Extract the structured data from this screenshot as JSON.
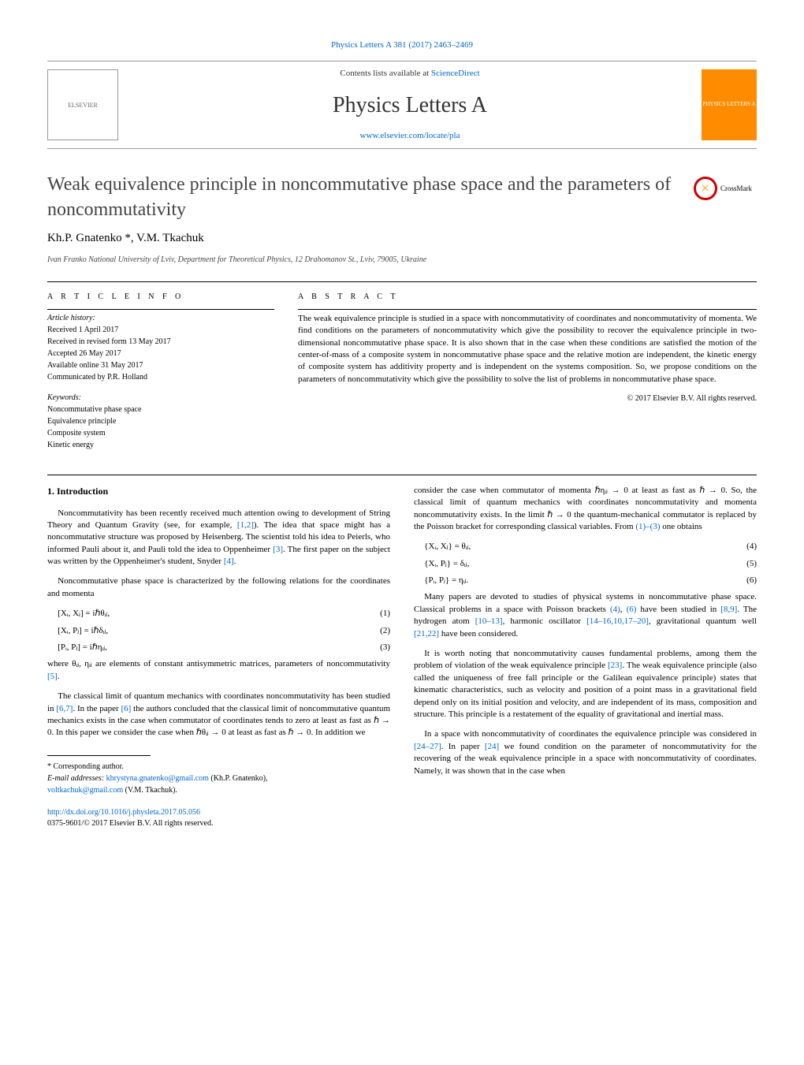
{
  "header": {
    "citation_link": "Physics Letters A 381 (2017) 2463–2469",
    "contents_line_pre": "Contents lists available at ",
    "contents_line_link": "ScienceDirect",
    "journal_name": "Physics Letters A",
    "journal_url": "www.elsevier.com/locate/pla",
    "elsevier_label": "ELSEVIER",
    "cover_label": "PHYSICS LETTERS A"
  },
  "article": {
    "title": "Weak equivalence principle in noncommutative phase space and the parameters of noncommutativity",
    "authors": "Kh.P. Gnatenko *, V.M. Tkachuk",
    "affiliation": "Ivan Franko National University of Lviv, Department for Theoretical Physics, 12 Drahomanov St., Lviv, 79005, Ukraine",
    "crossmark_label": "CrossMark"
  },
  "info": {
    "article_info_label": "A R T I C L E   I N F O",
    "history_label": "Article history:",
    "received": "Received 1 April 2017",
    "revised": "Received in revised form 13 May 2017",
    "accepted": "Accepted 26 May 2017",
    "online": "Available online 31 May 2017",
    "communicated": "Communicated by P.R. Holland",
    "keywords_label": "Keywords:",
    "keywords": [
      "Noncommutative phase space",
      "Equivalence principle",
      "Composite system",
      "Kinetic energy"
    ]
  },
  "abstract": {
    "label": "A B S T R A C T",
    "text": "The weak equivalence principle is studied in a space with noncommutativity of coordinates and noncommutativity of momenta. We find conditions on the parameters of noncommutativity which give the possibility to recover the equivalence principle in two-dimensional noncommutative phase space. It is also shown that in the case when these conditions are satisfied the motion of the center-of-mass of a composite system in noncommutative phase space and the relative motion are independent, the kinetic energy of composite system has additivity property and is independent on the systems composition. So, we propose conditions on the parameters of noncommutativity which give the possibility to solve the list of problems in noncommutative phase space.",
    "copyright": "© 2017 Elsevier B.V. All rights reserved."
  },
  "body": {
    "section1_heading": "1. Introduction",
    "p1_pre": "Noncommutativity has been recently received much attention owing to development of String Theory and Quantum Gravity (see, for example, ",
    "p1_cite1": "[1,2]",
    "p1_mid": "). The idea that space might has a noncommutative structure was proposed by Heisenberg. The scientist told his idea to Peierls, who informed Pauli about it, and Pauli told the idea to Oppenheimer ",
    "p1_cite2": "[3]",
    "p1_mid2": ". The first paper on the subject was written by the Oppenheimer's student, Snyder ",
    "p1_cite3": "[4]",
    "p1_end": ".",
    "p2": "Noncommutative phase space is characterized by the following relations for the coordinates and momenta",
    "eq1": "[Xᵢ, Xⱼ] = iℏθᵢⱼ,",
    "eq1n": "(1)",
    "eq2": "[Xᵢ, Pⱼ] = iℏδᵢⱼ,",
    "eq2n": "(2)",
    "eq3": "[Pᵢ, Pⱼ] = iℏηᵢⱼ,",
    "eq3n": "(3)",
    "p3_pre": "where θᵢⱼ, ηᵢⱼ are elements of constant antisymmetric matrices, parameters of noncommutativity ",
    "p3_cite": "[5]",
    "p3_end": ".",
    "p4_pre": "The classical limit of quantum mechanics with coordinates noncommutativity has been studied in ",
    "p4_cite1": "[6,7]",
    "p4_mid1": ". In the paper ",
    "p4_cite2": "[6]",
    "p4_mid2": " the authors concluded that the classical limit of noncommutative quantum mechanics exists in the case when commutator of coordinates tends to zero at least as fast as ℏ → 0. In this paper we consider the case when ℏθᵢⱼ → 0 at least as fast as ℏ → 0. In addition we",
    "p5_pre": "consider the case when commutator of momenta ℏηᵢⱼ → 0 at least as fast as ℏ → 0. So, the classical limit of quantum mechanics with coordinates noncommutativity and momenta noncommutativity exists. In the limit ℏ → 0 the quantum-mechanical commutator is replaced by the Poisson bracket for corresponding classical variables. From ",
    "p5_cite": "(1)–(3)",
    "p5_end": " one obtains",
    "eq4": "{Xᵢ, Xⱼ} = θᵢⱼ,",
    "eq4n": "(4)",
    "eq5": "{Xᵢ, Pⱼ} = δᵢⱼ,",
    "eq5n": "(5)",
    "eq6": "{Pᵢ, Pⱼ} = ηᵢⱼ.",
    "eq6n": "(6)",
    "p6_pre": "Many papers are devoted to studies of physical systems in noncommutative phase space. Classical problems in a space with Poisson brackets ",
    "p6_cite1": "(4)",
    "p6_mid1": ", ",
    "p6_cite2": "(6)",
    "p6_mid2": " have been studied in ",
    "p6_cite3": "[8,9]",
    "p6_mid3": ". The hydrogen atom ",
    "p6_cite4": "[10–13]",
    "p6_mid4": ", harmonic oscillator ",
    "p6_cite5": "[14–16,10,17–20]",
    "p6_mid5": ", gravitational quantum well ",
    "p6_cite6": "[21,22]",
    "p6_end": " have been considered.",
    "p7_pre": "It is worth noting that noncommutativity causes fundamental problems, among them the problem of violation of the weak equivalence principle ",
    "p7_cite": "[23]",
    "p7_end": ". The weak equivalence principle (also called the uniqueness of free fall principle or the Galilean equivalence principle) states that kinematic characteristics, such as velocity and position of a point mass in a gravitational field depend only on its initial position and velocity, and are independent of its mass, composition and structure. This principle is a restatement of the equality of gravitational and inertial mass.",
    "p8_pre": "In a space with noncommutativity of coordinates the equivalence principle was considered in ",
    "p8_cite1": "[24–27]",
    "p8_mid": ". In paper ",
    "p8_cite2": "[24]",
    "p8_end": " we found condition on the parameter of noncommutativity for the recovering of the weak equivalence principle in a space with noncommutativity of coordinates. Namely, it was shown that in the case when"
  },
  "footnote": {
    "corresponding": "* Corresponding author.",
    "email_label": "E-mail addresses: ",
    "email1": "khrystyna.gnatenko@gmail.com",
    "email1_author": " (Kh.P. Gnatenko), ",
    "email2": "voltkachuk@gmail.com",
    "email2_author": " (V.M. Tkachuk).",
    "doi": "http://dx.doi.org/10.1016/j.physleta.2017.05.056",
    "issn_copyright": "0375-9601/© 2017 Elsevier B.V. All rights reserved."
  },
  "colors": {
    "link": "#0066cc",
    "text": "#000000",
    "gray": "#444444",
    "cover_bg": "#ff8c00"
  }
}
